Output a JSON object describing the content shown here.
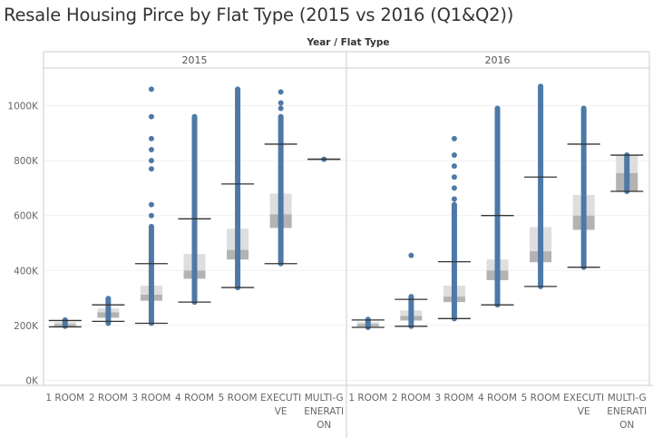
{
  "title": "Resale Housing Pirce by Flat Type (2015 vs 2016 (Q1&Q2))",
  "header_label": "Year  /  Flat Type",
  "colors": {
    "point": "#4e79a7",
    "box_upper": "#dedede",
    "box_lower": "#b3b3b3",
    "whisker": "#333333",
    "grid": "#f0f0f0",
    "axis": "#cccccc"
  },
  "chart_data": {
    "type": "boxplot",
    "y_ticks": [
      {
        "value": 0,
        "label": "0K"
      },
      {
        "value": 200000,
        "label": "200K"
      },
      {
        "value": 400000,
        "label": "400K"
      },
      {
        "value": 600000,
        "label": "600K"
      },
      {
        "value": 800000,
        "label": "800K"
      },
      {
        "value": 1000000,
        "label": "1000K"
      }
    ],
    "ylim": [
      0,
      1100000
    ],
    "categories": [
      [
        "1 ROOM"
      ],
      [
        "2 ROOM"
      ],
      [
        "3 ROOM"
      ],
      [
        "4 ROOM"
      ],
      [
        "5 ROOM"
      ],
      [
        "EXECUTI",
        "VE"
      ],
      [
        "MULTI-G",
        "ENERATI",
        "ON"
      ]
    ],
    "panels": [
      {
        "label": "2015",
        "series": [
          {
            "whisker_low": 195000,
            "q1": 197000,
            "median": 205000,
            "q3": 213000,
            "whisker_high": 218000,
            "points_low": 197000,
            "points_high": 220000,
            "outliers": []
          },
          {
            "whisker_low": 215000,
            "q1": 228000,
            "median": 248000,
            "q3": 262000,
            "whisker_high": 275000,
            "points_low": 208000,
            "points_high": 298000,
            "outliers": []
          },
          {
            "whisker_low": 208000,
            "q1": 290000,
            "median": 312000,
            "q3": 345000,
            "whisker_high": 425000,
            "points_low": 208000,
            "points_high": 560000,
            "outliers": [
              600000,
              640000,
              770000,
              800000,
              840000,
              880000,
              960000,
              1060000
            ]
          },
          {
            "whisker_low": 285000,
            "q1": 370000,
            "median": 400000,
            "q3": 460000,
            "whisker_high": 588000,
            "points_low": 285000,
            "points_high": 960000,
            "outliers": []
          },
          {
            "whisker_low": 338000,
            "q1": 440000,
            "median": 475000,
            "q3": 552000,
            "whisker_high": 715000,
            "points_low": 338000,
            "points_high": 1060000,
            "outliers": []
          },
          {
            "whisker_low": 425000,
            "q1": 555000,
            "median": 605000,
            "q3": 680000,
            "whisker_high": 860000,
            "points_low": 425000,
            "points_high": 960000,
            "outliers": [
              990000,
              1010000,
              1050000
            ]
          },
          {
            "whisker_low": 805000,
            "q1": 805000,
            "median": 805000,
            "q3": 805000,
            "whisker_high": 805000,
            "points_low": 805000,
            "points_high": 805000,
            "outliers": []
          }
        ]
      },
      {
        "label": "2016",
        "series": [
          {
            "whisker_low": 193000,
            "q1": 196000,
            "median": 205000,
            "q3": 212000,
            "whisker_high": 220000,
            "points_low": 193000,
            "points_high": 222000,
            "outliers": []
          },
          {
            "whisker_low": 197000,
            "q1": 218000,
            "median": 235000,
            "q3": 255000,
            "whisker_high": 295000,
            "points_low": 197000,
            "points_high": 305000,
            "outliers": [
              455000
            ]
          },
          {
            "whisker_low": 225000,
            "q1": 285000,
            "median": 305000,
            "q3": 345000,
            "whisker_high": 432000,
            "points_low": 225000,
            "points_high": 640000,
            "outliers": [
              660000,
              700000,
              740000,
              780000,
              820000,
              880000
            ]
          },
          {
            "whisker_low": 275000,
            "q1": 365000,
            "median": 400000,
            "q3": 440000,
            "whisker_high": 600000,
            "points_low": 275000,
            "points_high": 990000,
            "outliers": []
          },
          {
            "whisker_low": 342000,
            "q1": 430000,
            "median": 470000,
            "q3": 558000,
            "whisker_high": 740000,
            "points_low": 342000,
            "points_high": 1070000,
            "outliers": []
          },
          {
            "whisker_low": 412000,
            "q1": 548000,
            "median": 600000,
            "q3": 675000,
            "whisker_high": 860000,
            "points_low": 412000,
            "points_high": 990000,
            "outliers": []
          },
          {
            "whisker_low": 688000,
            "q1": 688000,
            "median": 755000,
            "q3": 820000,
            "whisker_high": 820000,
            "points_low": 688000,
            "points_high": 820000,
            "outliers": []
          }
        ]
      }
    ]
  }
}
